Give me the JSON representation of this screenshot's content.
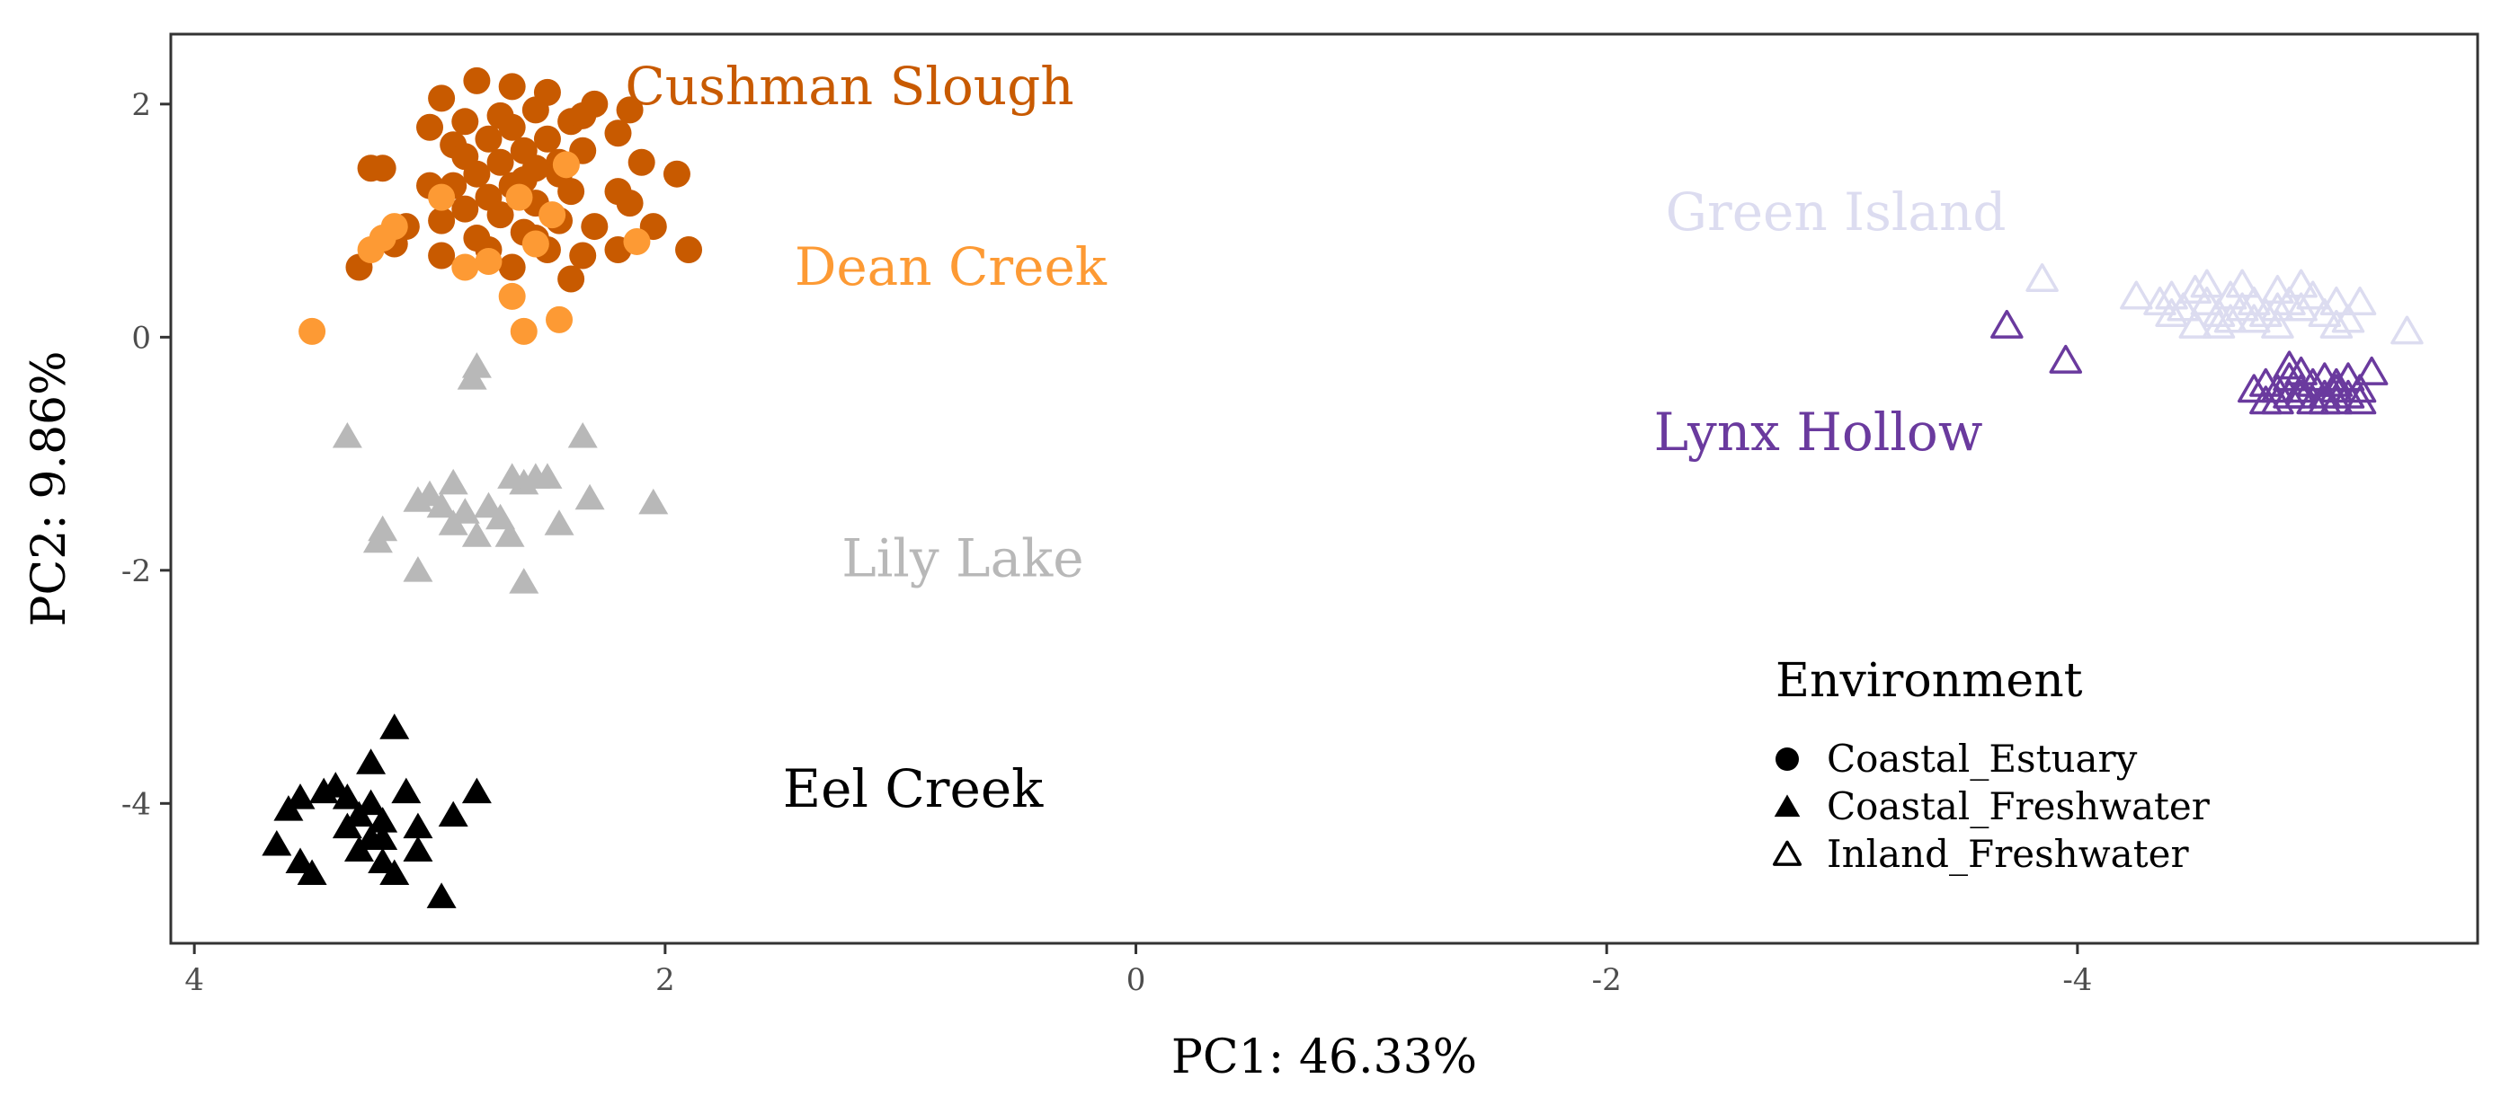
{
  "chart_data": {
    "type": "scatter",
    "xlabel": "PC1: 46.33%",
    "ylabel": "PC2: 9.86%",
    "xlim": [
      4.1,
      -5.7
    ],
    "ylim": [
      -5.2,
      2.6
    ],
    "x_reversed": true,
    "x_ticks": [
      4,
      2,
      0,
      -2,
      -4
    ],
    "x_tick_labels": [
      "4",
      "2",
      "0",
      "-2",
      "-4"
    ],
    "y_ticks": [
      2,
      0,
      -2,
      -4
    ],
    "y_tick_labels": [
      "2",
      "0",
      "-2",
      "-4"
    ],
    "grid": false,
    "legend": {
      "title": "Environment",
      "position": "bottom-right",
      "entries": [
        {
          "label": "Coastal_Estuary",
          "shape": "circle"
        },
        {
          "label": "Coastal_Freshwater",
          "shape": "triangle"
        },
        {
          "label": "Inland_Freshwater",
          "shape": "open-triangle"
        }
      ]
    },
    "series": [
      {
        "name": "Cushman Slough",
        "environment": "Coastal_Estuary",
        "shape": "circle",
        "color": "#c85a00",
        "label_at": [
          2.17,
          2.0
        ],
        "points": [
          [
            2.8,
            2.2
          ],
          [
            2.65,
            2.15
          ],
          [
            2.95,
            2.05
          ],
          [
            2.5,
            2.1
          ],
          [
            2.3,
            2.0
          ],
          [
            2.15,
            1.95
          ],
          [
            2.7,
            1.9
          ],
          [
            2.55,
            1.95
          ],
          [
            2.4,
            1.85
          ],
          [
            2.85,
            1.85
          ],
          [
            3.0,
            1.8
          ],
          [
            2.2,
            1.75
          ],
          [
            2.65,
            1.8
          ],
          [
            2.75,
            1.7
          ],
          [
            2.6,
            1.6
          ],
          [
            2.5,
            1.7
          ],
          [
            2.35,
            1.6
          ],
          [
            2.9,
            1.65
          ],
          [
            2.45,
            1.5
          ],
          [
            2.7,
            1.5
          ],
          [
            2.55,
            1.45
          ],
          [
            2.8,
            1.4
          ],
          [
            2.6,
            1.35
          ],
          [
            3.2,
            1.45
          ],
          [
            3.25,
            1.45
          ],
          [
            2.1,
            1.5
          ],
          [
            1.95,
            1.4
          ],
          [
            2.65,
            1.3
          ],
          [
            2.9,
            1.3
          ],
          [
            2.75,
            1.2
          ],
          [
            2.4,
            1.25
          ],
          [
            2.2,
            1.25
          ],
          [
            3.0,
            1.3
          ],
          [
            2.55,
            1.15
          ],
          [
            2.7,
            1.05
          ],
          [
            2.45,
            1.0
          ],
          [
            2.85,
            1.1
          ],
          [
            2.95,
            1.0
          ],
          [
            2.3,
            0.95
          ],
          [
            3.1,
            0.95
          ],
          [
            2.6,
            0.9
          ],
          [
            2.8,
            0.85
          ],
          [
            2.05,
            0.95
          ],
          [
            1.9,
            0.75
          ],
          [
            2.5,
            0.75
          ],
          [
            2.35,
            0.7
          ],
          [
            2.75,
            0.75
          ],
          [
            3.15,
            0.8
          ],
          [
            2.95,
            0.7
          ],
          [
            2.65,
            0.6
          ],
          [
            3.3,
            0.6
          ],
          [
            2.2,
            0.75
          ],
          [
            2.4,
            0.5
          ],
          [
            2.55,
            0.85
          ],
          [
            2.15,
            1.15
          ],
          [
            2.45,
            1.4
          ],
          [
            2.85,
            1.55
          ],
          [
            2.35,
            1.9
          ]
        ]
      },
      {
        "name": "Dean Creek",
        "environment": "Coastal_Estuary",
        "shape": "circle",
        "color": "#fd9a34",
        "label_at": [
          1.45,
          0.45
        ],
        "points": [
          [
            3.5,
            0.05
          ],
          [
            3.25,
            0.75
          ],
          [
            3.2,
            0.85
          ],
          [
            3.15,
            0.95
          ],
          [
            2.85,
            0.6
          ],
          [
            2.75,
            0.65
          ],
          [
            2.65,
            0.35
          ],
          [
            2.6,
            0.05
          ],
          [
            2.45,
            0.15
          ],
          [
            2.55,
            0.8
          ],
          [
            2.62,
            1.2
          ],
          [
            2.42,
            1.48
          ],
          [
            2.12,
            0.82
          ],
          [
            2.48,
            1.05
          ],
          [
            2.95,
            1.2
          ]
        ]
      },
      {
        "name": "Lily Lake",
        "environment": "Coastal_Freshwater",
        "shape": "triangle",
        "color": "#b8b8b8",
        "label_at": [
          1.25,
          -2.05
        ],
        "points": [
          [
            2.8,
            -0.25
          ],
          [
            2.82,
            -0.35
          ],
          [
            3.35,
            -0.85
          ],
          [
            2.35,
            -0.85
          ],
          [
            3.2,
            -1.65
          ],
          [
            3.22,
            -1.75
          ],
          [
            3.05,
            -2.0
          ],
          [
            2.6,
            -2.1
          ],
          [
            2.9,
            -1.25
          ],
          [
            3.0,
            -1.35
          ],
          [
            3.05,
            -1.4
          ],
          [
            2.85,
            -1.5
          ],
          [
            2.9,
            -1.6
          ],
          [
            2.75,
            -1.45
          ],
          [
            2.7,
            -1.55
          ],
          [
            2.65,
            -1.2
          ],
          [
            2.6,
            -1.25
          ],
          [
            2.55,
            -1.2
          ],
          [
            2.5,
            -1.2
          ],
          [
            2.45,
            -1.6
          ],
          [
            2.32,
            -1.38
          ],
          [
            2.05,
            -1.42
          ],
          [
            2.8,
            -1.7
          ],
          [
            2.66,
            -1.7
          ],
          [
            2.95,
            -1.45
          ]
        ]
      },
      {
        "name": "Eel Creek",
        "environment": "Coastal_Freshwater",
        "shape": "triangle",
        "color": "#000000",
        "label_at": [
          1.5,
          -4.03
        ],
        "points": [
          [
            3.15,
            -3.35
          ],
          [
            3.25,
            -3.65
          ],
          [
            3.55,
            -3.95
          ],
          [
            3.45,
            -3.9
          ],
          [
            3.6,
            -4.05
          ],
          [
            3.35,
            -3.95
          ],
          [
            3.25,
            -4.0
          ],
          [
            3.1,
            -3.9
          ],
          [
            2.8,
            -3.9
          ],
          [
            3.3,
            -4.1
          ],
          [
            3.2,
            -4.15
          ],
          [
            3.05,
            -4.2
          ],
          [
            3.35,
            -4.2
          ],
          [
            3.25,
            -4.3
          ],
          [
            3.05,
            -4.4
          ],
          [
            3.65,
            -4.35
          ],
          [
            3.55,
            -4.5
          ],
          [
            3.2,
            -4.5
          ],
          [
            3.15,
            -4.6
          ],
          [
            3.5,
            -4.6
          ],
          [
            2.95,
            -4.8
          ],
          [
            3.2,
            -4.3
          ],
          [
            2.9,
            -4.1
          ],
          [
            3.4,
            -3.85
          ],
          [
            3.3,
            -4.4
          ]
        ]
      },
      {
        "name": "Green Island",
        "environment": "Inland_Freshwater",
        "shape": "open-triangle",
        "color": "#dcdcf0",
        "label_at": [
          -2.25,
          0.92
        ],
        "points": [
          [
            -3.85,
            0.5
          ],
          [
            -4.25,
            0.35
          ],
          [
            -4.35,
            0.3
          ],
          [
            -4.45,
            0.25
          ],
          [
            -4.5,
            0.4
          ],
          [
            -4.55,
            0.3
          ],
          [
            -4.6,
            0.2
          ],
          [
            -4.65,
            0.35
          ],
          [
            -4.7,
            0.45
          ],
          [
            -4.75,
            0.3
          ],
          [
            -4.8,
            0.2
          ],
          [
            -4.85,
            0.4
          ],
          [
            -4.9,
            0.3
          ],
          [
            -4.95,
            0.25
          ],
          [
            -5.0,
            0.35
          ],
          [
            -5.05,
            0.2
          ],
          [
            -5.1,
            0.3
          ],
          [
            -4.4,
            0.2
          ],
          [
            -4.55,
            0.45
          ],
          [
            -4.75,
            0.15
          ],
          [
            -4.85,
            0.1
          ],
          [
            -4.6,
            0.1
          ],
          [
            -5.15,
            0.15
          ],
          [
            -5.2,
            0.3
          ],
          [
            -5.4,
            0.05
          ],
          [
            -4.5,
            0.1
          ],
          [
            -4.95,
            0.45
          ],
          [
            -5.1,
            0.1
          ],
          [
            -4.7,
            0.25
          ],
          [
            -4.85,
            0.25
          ],
          [
            -4.65,
            0.15
          ],
          [
            -4.4,
            0.35
          ]
        ]
      },
      {
        "name": "Lynx Hollow",
        "environment": "Inland_Freshwater",
        "shape": "open-triangle",
        "color": "#6a3a9e",
        "label_at": [
          -2.2,
          -0.97
        ],
        "points": [
          [
            -3.7,
            0.1
          ],
          [
            -3.95,
            -0.2
          ],
          [
            -5.25,
            -0.3
          ],
          [
            -4.8,
            -0.4
          ],
          [
            -4.85,
            -0.45
          ],
          [
            -4.9,
            -0.35
          ],
          [
            -4.95,
            -0.3
          ],
          [
            -5.0,
            -0.4
          ],
          [
            -5.05,
            -0.5
          ],
          [
            -5.1,
            -0.45
          ],
          [
            -5.15,
            -0.5
          ],
          [
            -5.2,
            -0.45
          ],
          [
            -4.75,
            -0.45
          ],
          [
            -4.85,
            -0.55
          ],
          [
            -4.95,
            -0.5
          ],
          [
            -5.05,
            -0.35
          ],
          [
            -5.1,
            -0.55
          ],
          [
            -5.2,
            -0.55
          ],
          [
            -4.9,
            -0.25
          ],
          [
            -4.8,
            -0.55
          ],
          [
            -5.0,
            -0.55
          ],
          [
            -5.15,
            -0.35
          ],
          [
            -4.95,
            -0.45
          ],
          [
            -5.05,
            -0.55
          ],
          [
            -4.9,
            -0.5
          ],
          [
            -5.1,
            -0.4
          ]
        ]
      }
    ]
  }
}
